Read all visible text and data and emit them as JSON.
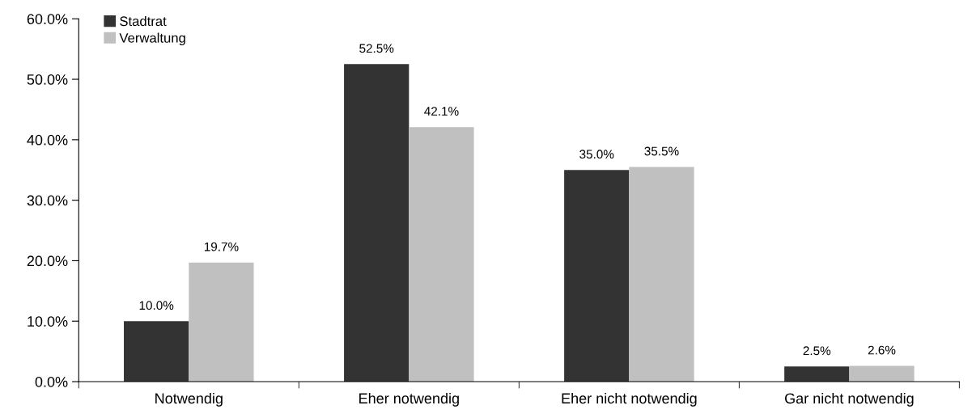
{
  "chart_data": {
    "type": "bar",
    "categories": [
      "Notwendig",
      "Eher notwendig",
      "Eher nicht notwendig",
      "Gar nicht notwendig"
    ],
    "series": [
      {
        "name": "Stadtrat",
        "color": "#333333",
        "values": [
          10.0,
          52.5,
          35.0,
          2.5
        ],
        "value_labels": [
          "10.0%",
          "52.5%",
          "35.0%",
          "2.5%"
        ]
      },
      {
        "name": "Verwaltung",
        "color": "#c0c0c0",
        "values": [
          19.7,
          42.1,
          35.5,
          2.6
        ],
        "value_labels": [
          "19.7%",
          "42.1%",
          "35.5%",
          "2.6%"
        ]
      }
    ],
    "ylim": [
      0,
      60
    ],
    "yticks": [
      {
        "value": 0,
        "label": "0.0%"
      },
      {
        "value": 10,
        "label": "10.0%"
      },
      {
        "value": 20,
        "label": "20.0%"
      },
      {
        "value": 30,
        "label": "30.0%"
      },
      {
        "value": 40,
        "label": "40.0%"
      },
      {
        "value": 50,
        "label": "50.0%"
      },
      {
        "value": 60,
        "label": "60.0%"
      }
    ],
    "grid": false,
    "legend": "top left"
  }
}
